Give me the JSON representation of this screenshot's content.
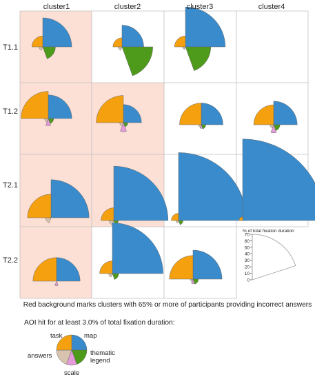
{
  "columns": [
    "cluster1",
    "cluster2",
    "cluster3",
    "cluster4"
  ],
  "rows": [
    "T1.1",
    "T1.2",
    "T2.1",
    "T2.2"
  ],
  "caption": "Red background marks clusters with 65% or more of participants providing incorrect answers",
  "scale_label": "% of total fixation duration",
  "scale_ticks": [
    "0",
    "10",
    "20",
    "30",
    "40",
    "50",
    "60",
    "70"
  ],
  "legend": {
    "title": "AOI hit for at least 3.0% of total fixation duration:",
    "items": [
      "task",
      "map",
      "thematic legend",
      "scale",
      "answers"
    ]
  },
  "colors": {
    "task": "#F5A00F",
    "map": "#3A8BCB",
    "thematic_legend": "#4E9A1B",
    "scale": "#E59AD9",
    "answers": "#D8C3AE",
    "red_background": "#FCE0D5",
    "grid": "#BFBFBF"
  },
  "chart_data": {
    "type": "polar-area-grid",
    "unit": "% of total fixation duration",
    "rlim": [
      0,
      70
    ],
    "categories": [
      "task",
      "map",
      "thematic legend",
      "scale",
      "answers"
    ],
    "cells": [
      {
        "row": "T1.1",
        "column": "cluster1",
        "red": true,
        "values": {
          "task": 12,
          "map": 32,
          "thematic legend": 14,
          "scale": 0,
          "answers": 4
        }
      },
      {
        "row": "T1.1",
        "column": "cluster2",
        "red": false,
        "values": {
          "task": 10,
          "map": 24,
          "thematic legend": 34,
          "scale": 0,
          "answers": 4
        }
      },
      {
        "row": "T1.1",
        "column": "cluster3",
        "red": false,
        "values": {
          "task": 12,
          "map": 44,
          "thematic legend": 28,
          "scale": 0,
          "answers": 3
        }
      },
      {
        "row": "T1.1",
        "column": "cluster4",
        "red": false,
        "values": null
      },
      {
        "row": "T1.2",
        "column": "cluster1",
        "red": true,
        "values": {
          "task": 30,
          "map": 26,
          "thematic legend": 6,
          "scale": 8,
          "answers": 4
        }
      },
      {
        "row": "T1.2",
        "column": "cluster2",
        "red": true,
        "values": {
          "task": 30,
          "map": 20,
          "thematic legend": 5,
          "scale": 10,
          "answers": 4
        }
      },
      {
        "row": "T1.2",
        "column": "cluster3",
        "red": false,
        "values": {
          "task": 24,
          "map": 24,
          "thematic legend": 5,
          "scale": 4,
          "answers": 3
        }
      },
      {
        "row": "T1.2",
        "column": "cluster4",
        "red": false,
        "values": {
          "task": 22,
          "map": 26,
          "thematic legend": 7,
          "scale": 9,
          "answers": 4
        }
      },
      {
        "row": "T2.1",
        "column": "cluster1",
        "red": true,
        "values": {
          "task": 26,
          "map": 42,
          "thematic legend": 0,
          "scale": 0,
          "answers": 6
        }
      },
      {
        "row": "T2.1",
        "column": "cluster2",
        "red": true,
        "values": {
          "task": 14,
          "map": 60,
          "thematic legend": 5,
          "scale": 0,
          "answers": 5
        }
      },
      {
        "row": "T2.1",
        "column": "cluster3",
        "red": false,
        "values": {
          "task": 8,
          "map": 75,
          "thematic legend": 5,
          "scale": 0,
          "answers": 3
        }
      },
      {
        "row": "T2.1",
        "column": "cluster4",
        "red": false,
        "values": {
          "task": 4,
          "map": 90,
          "thematic legend": 0,
          "scale": 0,
          "answers": 0
        }
      },
      {
        "row": "T2.2",
        "column": "cluster1",
        "red": true,
        "values": {
          "task": 26,
          "map": 26,
          "thematic legend": 0,
          "scale": 5,
          "answers": 0
        }
      },
      {
        "row": "T2.2",
        "column": "cluster2",
        "red": false,
        "values": {
          "task": 14,
          "map": 56,
          "thematic legend": 7,
          "scale": 0,
          "answers": 4
        }
      },
      {
        "row": "T2.2",
        "column": "cluster3",
        "red": false,
        "values": {
          "task": 26,
          "map": 32,
          "thematic legend": 6,
          "scale": 5,
          "answers": 3
        }
      }
    ]
  }
}
